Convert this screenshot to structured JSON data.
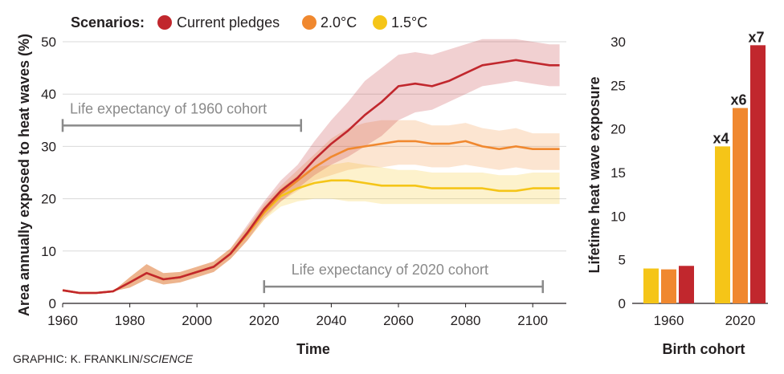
{
  "legend": {
    "title": "Scenarios:",
    "items": [
      {
        "label": "Current pledges",
        "color": "#c1272d"
      },
      {
        "label": "2.0°C",
        "color": "#f0882f"
      },
      {
        "label": "1.5°C",
        "color": "#f5c518"
      }
    ]
  },
  "annotations": [
    {
      "label": "Life expectancy of 1960 cohort",
      "x_start": 1960,
      "x_end": 2031,
      "y": 34
    },
    {
      "label": "Life expectancy of 2020 cohort",
      "x_start": 2020,
      "x_end": 2103,
      "y": 3.2
    }
  ],
  "credit": {
    "prefix": "GRAPHIC: K. FRANKLIN/",
    "source": "SCIENCE"
  },
  "chart_data": [
    {
      "type": "line",
      "title": "",
      "xlabel": "Time",
      "ylabel": "Area annually exposed to heat waves (%)",
      "xlim": [
        1960,
        2110
      ],
      "ylim": [
        0,
        50
      ],
      "xticks": [
        1960,
        1980,
        2000,
        2020,
        2040,
        2060,
        2080,
        2100
      ],
      "yticks": [
        0,
        10,
        20,
        30,
        40,
        50
      ],
      "grid": true,
      "x": [
        1960,
        1965,
        1970,
        1975,
        1980,
        1985,
        1990,
        1995,
        2000,
        2005,
        2010,
        2015,
        2020,
        2025,
        2030,
        2035,
        2040,
        2045,
        2050,
        2055,
        2060,
        2065,
        2070,
        2075,
        2080,
        2085,
        2090,
        2095,
        2100,
        2105,
        2108
      ],
      "series": [
        {
          "name": "Current pledges",
          "color": "#c1272d",
          "values": [
            2.5,
            2.0,
            2.0,
            2.3,
            4.0,
            5.8,
            4.6,
            5.0,
            6.0,
            7.0,
            9.5,
            13.5,
            18.0,
            21.5,
            24.0,
            27.5,
            30.5,
            33.0,
            36.0,
            38.5,
            41.5,
            42.0,
            41.5,
            42.5,
            44.0,
            45.5,
            46.0,
            46.5,
            46.0,
            45.5,
            45.5
          ],
          "lower": [
            2.5,
            2.0,
            2.0,
            2.3,
            3.0,
            4.6,
            3.6,
            4.0,
            5.0,
            6.0,
            8.5,
            12.0,
            16.5,
            19.5,
            22.0,
            24.5,
            26.5,
            28.0,
            30.0,
            32.0,
            35.0,
            36.5,
            37.0,
            38.5,
            40.0,
            41.5,
            42.0,
            42.5,
            42.0,
            41.5,
            41.5
          ],
          "upper": [
            2.5,
            2.0,
            2.0,
            2.3,
            5.0,
            7.5,
            5.8,
            6.0,
            7.0,
            8.0,
            10.5,
            15.0,
            19.5,
            23.5,
            26.5,
            31.0,
            35.0,
            38.5,
            42.5,
            45.0,
            47.5,
            48.0,
            47.5,
            48.5,
            49.5,
            50.5,
            50.5,
            50.5,
            50.0,
            49.5,
            49.5
          ]
        },
        {
          "name": "2.0°C",
          "color": "#f0882f",
          "values": [
            2.5,
            2.0,
            2.0,
            2.3,
            4.0,
            5.8,
            4.6,
            5.0,
            6.0,
            7.0,
            9.5,
            13.3,
            17.5,
            21.0,
            23.5,
            26.0,
            28.0,
            29.5,
            30.0,
            30.5,
            31.0,
            31.0,
            30.5,
            30.5,
            31.0,
            30.0,
            29.5,
            30.0,
            29.5,
            29.5,
            29.5
          ],
          "lower": [
            2.5,
            2.0,
            2.0,
            2.3,
            3.0,
            4.6,
            3.6,
            4.0,
            5.0,
            6.0,
            8.5,
            12.0,
            16.0,
            19.5,
            21.5,
            23.5,
            24.5,
            25.5,
            26.0,
            26.0,
            26.5,
            26.5,
            26.0,
            26.0,
            26.5,
            26.0,
            25.5,
            26.0,
            25.5,
            25.5,
            25.5
          ],
          "upper": [
            2.5,
            2.0,
            2.0,
            2.3,
            5.0,
            7.5,
            5.8,
            6.0,
            7.0,
            8.0,
            10.5,
            14.5,
            19.0,
            22.5,
            25.5,
            28.5,
            31.5,
            33.5,
            34.5,
            35.0,
            35.0,
            35.0,
            34.0,
            34.0,
            34.5,
            33.5,
            33.0,
            33.5,
            32.5,
            32.5,
            32.5
          ]
        },
        {
          "name": "1.5°C",
          "color": "#f5c518",
          "values": [
            2.5,
            2.0,
            2.0,
            2.3,
            4.0,
            5.8,
            4.6,
            5.0,
            6.0,
            7.0,
            9.5,
            13.2,
            17.3,
            20.5,
            22.0,
            23.0,
            23.5,
            23.5,
            23.0,
            22.5,
            22.5,
            22.5,
            22.0,
            22.0,
            22.0,
            22.0,
            21.5,
            21.5,
            22.0,
            22.0,
            22.0
          ],
          "lower": [
            2.5,
            2.0,
            2.0,
            2.3,
            3.0,
            4.6,
            3.6,
            4.0,
            5.0,
            6.0,
            8.5,
            12.0,
            16.0,
            18.5,
            19.5,
            20.0,
            20.0,
            19.5,
            19.5,
            19.0,
            19.0,
            19.0,
            19.0,
            19.0,
            19.0,
            19.0,
            19.0,
            19.0,
            19.0,
            19.0,
            19.0
          ],
          "upper": [
            2.5,
            2.0,
            2.0,
            2.3,
            5.0,
            7.5,
            5.8,
            6.0,
            7.0,
            8.0,
            10.5,
            14.5,
            18.5,
            22.0,
            24.5,
            26.0,
            26.5,
            27.0,
            26.5,
            26.0,
            25.5,
            25.5,
            25.0,
            25.0,
            25.0,
            25.0,
            24.5,
            24.5,
            25.0,
            25.0,
            25.0
          ]
        }
      ]
    },
    {
      "type": "bar",
      "title": "",
      "xlabel": "Birth cohort",
      "ylabel": "Lifetime heat wave exposure",
      "categories": [
        "1960",
        "2020"
      ],
      "ylim": [
        0,
        30
      ],
      "yticks": [
        0,
        5,
        10,
        15,
        20,
        25,
        30
      ],
      "grid": false,
      "series": [
        {
          "name": "1.5°C",
          "color": "#f5c518",
          "values": [
            4.0,
            18.0
          ],
          "labels": [
            "",
            "x4"
          ]
        },
        {
          "name": "2.0°C",
          "color": "#f0882f",
          "values": [
            3.9,
            22.4
          ],
          "labels": [
            "",
            "x6"
          ]
        },
        {
          "name": "Current pledges",
          "color": "#c1272d",
          "values": [
            4.3,
            29.6
          ],
          "labels": [
            "",
            "x7"
          ]
        }
      ]
    }
  ]
}
